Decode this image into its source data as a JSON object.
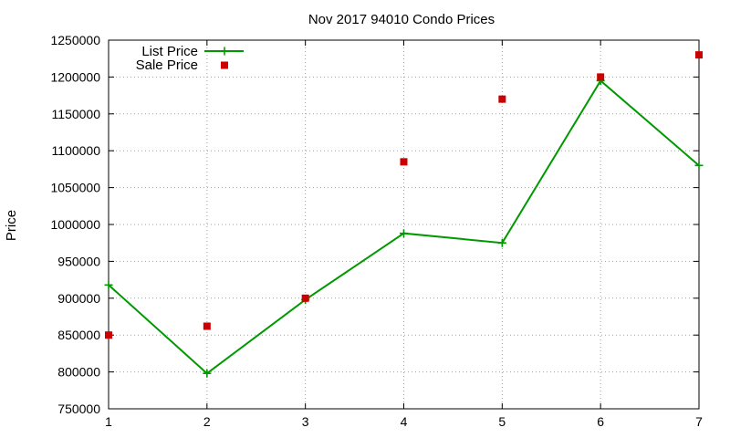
{
  "chart_data": {
    "type": "line",
    "title": "Nov 2017 94010 Condo Prices",
    "xlabel": "",
    "ylabel": "Price",
    "x": [
      1,
      2,
      3,
      4,
      5,
      6,
      7
    ],
    "xlim": [
      1,
      7
    ],
    "ylim": [
      750000,
      1250000
    ],
    "x_ticks": [
      "1",
      "2",
      "3",
      "4",
      "5",
      "6",
      "7"
    ],
    "y_ticks": [
      "750000",
      "800000",
      "850000",
      "900000",
      "950000",
      "1000000",
      "1050000",
      "1100000",
      "1150000",
      "1200000",
      "1250000"
    ],
    "grid": true,
    "legend_position": "top-left",
    "series": [
      {
        "name": "List Price",
        "style": "line-points",
        "marker": "plus",
        "color": "#009900",
        "values": [
          918000,
          798000,
          898000,
          988000,
          975000,
          1195000,
          1080000
        ]
      },
      {
        "name": "Sale Price",
        "style": "points",
        "marker": "square",
        "color": "#cc0000",
        "values": [
          850000,
          862000,
          900000,
          1085000,
          1170000,
          1200000,
          1230000
        ]
      }
    ]
  }
}
